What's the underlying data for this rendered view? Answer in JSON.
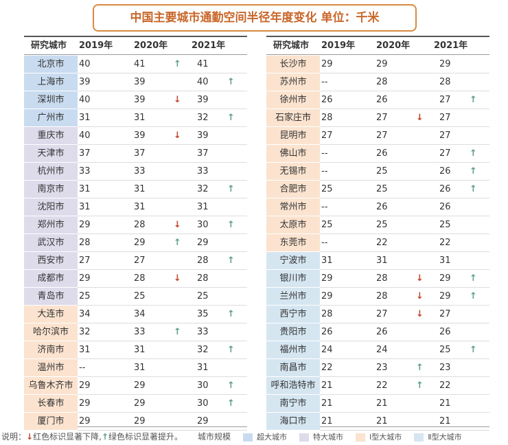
{
  "title": "中国主要城市通勤空间半径年度变化  单位：千米",
  "header": [
    "研究城市",
    "2019年",
    "2020年",
    "2021年"
  ],
  "tables": [
    {
      "groups": [
        {
          "color": "#c9dbef",
          "rows": [
            [
              "北京市",
              40,
              41,
              "↑",
              41,
              null
            ],
            [
              "上海市",
              39,
              39,
              null,
              40,
              "↑"
            ],
            [
              "深圳市",
              40,
              39,
              "↓",
              39,
              null
            ],
            [
              "广州市",
              31,
              31,
              null,
              32,
              "↑"
            ]
          ]
        },
        {
          "color": "#dedbeb",
          "rows": [
            [
              "重庆市",
              40,
              39,
              "↓",
              39,
              null
            ],
            [
              "天津市",
              37,
              37,
              null,
              37,
              null
            ],
            [
              "杭州市",
              33,
              33,
              null,
              33,
              null
            ],
            [
              "南京市",
              31,
              31,
              null,
              32,
              "↑"
            ],
            [
              "沈阳市",
              31,
              31,
              null,
              31,
              null
            ],
            [
              "郑州市",
              29,
              28,
              "↓",
              30,
              "↑"
            ],
            [
              "武汉市",
              28,
              29,
              "↑",
              29,
              null
            ],
            [
              "西安市",
              27,
              27,
              null,
              28,
              "↑"
            ],
            [
              "成都市",
              29,
              28,
              "↓",
              28,
              null
            ],
            [
              "青岛市",
              25,
              25,
              null,
              25,
              null
            ]
          ]
        },
        {
          "color": "#fbe3cf",
          "rows": [
            [
              "大连市",
              34,
              34,
              null,
              35,
              "↑"
            ],
            [
              "哈尔滨市",
              32,
              33,
              "↑",
              33,
              null
            ],
            [
              "济南市",
              31,
              31,
              null,
              32,
              "↑"
            ],
            [
              "温州市",
              "--",
              31,
              null,
              31,
              null
            ],
            [
              "乌鲁木齐市",
              29,
              29,
              null,
              30,
              "↑"
            ],
            [
              "长春市",
              29,
              29,
              null,
              30,
              "↑"
            ],
            [
              "厦门市",
              29,
              29,
              null,
              29,
              null
            ]
          ]
        }
      ]
    },
    {
      "groups": [
        {
          "color": "#fbe3cf",
          "rows": [
            [
              "长沙市",
              29,
              29,
              null,
              29,
              null
            ],
            [
              "苏州市",
              "--",
              28,
              null,
              28,
              null
            ],
            [
              "徐州市",
              26,
              26,
              null,
              27,
              "↑"
            ],
            [
              "石家庄市",
              28,
              27,
              "↓",
              27,
              null
            ],
            [
              "昆明市",
              27,
              27,
              null,
              27,
              null
            ],
            [
              "佛山市",
              "--",
              26,
              null,
              27,
              "↑"
            ],
            [
              "无锡市",
              "--",
              25,
              null,
              26,
              "↑"
            ],
            [
              "合肥市",
              25,
              25,
              null,
              26,
              "↑"
            ],
            [
              "常州市",
              "--",
              26,
              null,
              26,
              null
            ],
            [
              "太原市",
              25,
              25,
              null,
              25,
              null
            ],
            [
              "东莞市",
              "--",
              22,
              null,
              22,
              null
            ]
          ]
        },
        {
          "color": "#d5e6f1",
          "rows": [
            [
              "宁波市",
              31,
              31,
              null,
              31,
              null
            ],
            [
              "银川市",
              29,
              28,
              "↓",
              29,
              "↑"
            ],
            [
              "兰州市",
              29,
              28,
              "↓",
              29,
              "↑"
            ],
            [
              "西宁市",
              28,
              27,
              "↓",
              27,
              null
            ],
            [
              "贵阳市",
              26,
              26,
              null,
              26,
              null
            ],
            [
              "福州市",
              24,
              24,
              null,
              25,
              "↑"
            ],
            [
              "南昌市",
              22,
              23,
              "↑",
              23,
              null
            ],
            [
              "呼和浩特市",
              21,
              22,
              "↑",
              22,
              null
            ],
            [
              "南宁市",
              21,
              21,
              null,
              21,
              null
            ],
            [
              "海口市",
              21,
              21,
              null,
              21,
              null
            ]
          ]
        }
      ]
    }
  ],
  "note": {
    "label": "说明：",
    "down_symbol": "↓",
    "down_text": "红色标识显著下降,",
    "up_symbol": "↑",
    "up_text": "绿色标识显著提升。"
  },
  "legend": {
    "label": "城市规模",
    "items": [
      {
        "label": "超大城市",
        "color": "#c9dbef"
      },
      {
        "label": "特大城市",
        "color": "#dedbeb"
      },
      {
        "label": "Ⅰ型大城市",
        "color": "#fbe3cf"
      },
      {
        "label": "Ⅱ型大城市",
        "color": "#d5e6f1"
      }
    ]
  }
}
